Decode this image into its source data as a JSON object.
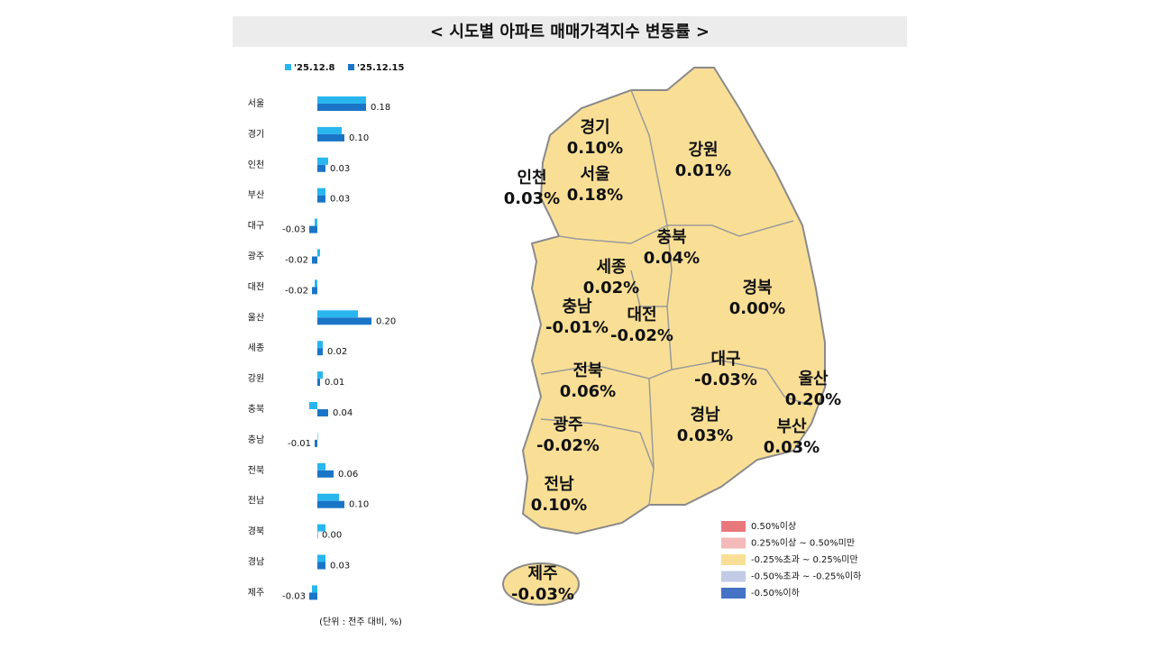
{
  "chart_data": {
    "type": "bar",
    "title": "< 시도별 아파트 매매가격지수 변동률 >",
    "note": "(단위 : 전주 대비, %)",
    "categories": [
      "서울",
      "경기",
      "인천",
      "부산",
      "대구",
      "광주",
      "대전",
      "울산",
      "세종",
      "강원",
      "충북",
      "충남",
      "전북",
      "전남",
      "경북",
      "경남",
      "제주"
    ],
    "series": [
      {
        "name": "'25.12.8",
        "color": "#29b6ef",
        "values": [
          0.18,
          0.09,
          0.04,
          0.03,
          -0.01,
          0.01,
          -0.01,
          0.15,
          0.02,
          0.02,
          -0.03,
          0.0,
          0.03,
          0.08,
          0.03,
          0.03,
          -0.02
        ]
      },
      {
        "name": "'25.12.15",
        "color": "#1b75c6",
        "values": [
          0.18,
          0.1,
          0.03,
          0.03,
          -0.03,
          -0.02,
          -0.02,
          0.2,
          0.02,
          0.01,
          0.04,
          -0.01,
          0.06,
          0.1,
          0,
          0.03,
          -0.03
        ],
        "value_labels": [
          "0.18",
          "0.10",
          "0.03",
          "0.03",
          "-0.03",
          "-0.02",
          "-0.02",
          "0.20",
          "0.02",
          "0.01",
          "0.04",
          "-0.01",
          "0.06",
          "0.10",
          "0.00",
          "0.03",
          "-0.03"
        ]
      }
    ]
  },
  "map": {
    "regions": [
      {
        "name": "경기",
        "label": "0.10%"
      },
      {
        "name": "강원",
        "label": "0.01%"
      },
      {
        "name": "인천",
        "label": "0.03%"
      },
      {
        "name": "서울",
        "label": "0.18%"
      },
      {
        "name": "충북",
        "label": "0.04%"
      },
      {
        "name": "세종",
        "label": "0.02%"
      },
      {
        "name": "경북",
        "label": "0.00%"
      },
      {
        "name": "충남",
        "label": "-0.01%"
      },
      {
        "name": "대전",
        "label": "-0.02%"
      },
      {
        "name": "대구",
        "label": "-0.03%"
      },
      {
        "name": "울산",
        "label": "0.20%"
      },
      {
        "name": "전북",
        "label": "0.06%"
      },
      {
        "name": "경남",
        "label": "0.03%"
      },
      {
        "name": "부산",
        "label": "0.03%"
      },
      {
        "name": "광주",
        "label": "-0.02%"
      },
      {
        "name": "전남",
        "label": "0.10%"
      },
      {
        "name": "제주",
        "label": "-0.03%"
      }
    ],
    "legend": [
      {
        "label": "0.50%이상",
        "color": "#e8787a"
      },
      {
        "label": "0.25%이상 ~ 0.50%미만",
        "color": "#f4b9b9"
      },
      {
        "label": "-0.25%초과 ~ 0.25%미만",
        "color": "#f9df96"
      },
      {
        "label": "-0.50%초과 ~ -0.25%이하",
        "color": "#c2cbe6"
      },
      {
        "label": "-0.50%이하",
        "color": "#4472c4"
      }
    ]
  }
}
